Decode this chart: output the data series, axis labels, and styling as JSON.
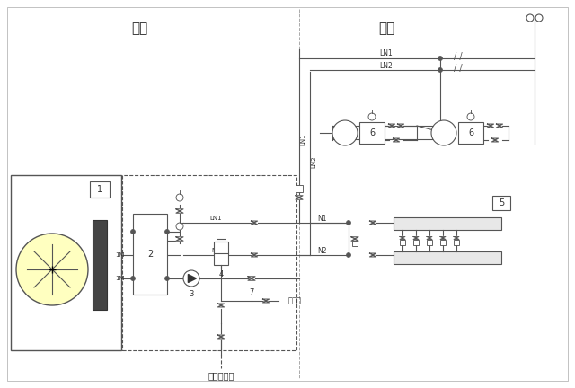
{
  "bg_color": "#ffffff",
  "lc": "#555555",
  "lw": 0.8,
  "label_outdoor": "室外",
  "label_indoor": "室内",
  "label_water": "自来水补水",
  "label_inject": "注液口"
}
